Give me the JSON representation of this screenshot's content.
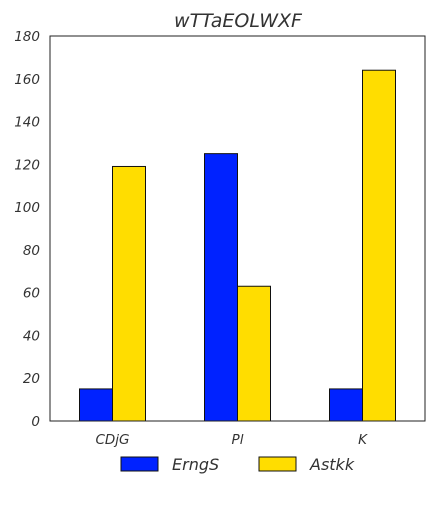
{
  "chart_data": {
    "type": "bar",
    "title": "wTTaEOLWXF",
    "xlabel": "",
    "ylabel": "",
    "categories": [
      "CDjG",
      "Pl",
      "K"
    ],
    "series": [
      {
        "name": "ErngS",
        "values": [
          15,
          125,
          15
        ],
        "color": "#0022ff"
      },
      {
        "name": "Astkk",
        "values": [
          119,
          63,
          164
        ],
        "color": "#ffdd00"
      }
    ],
    "ylim": [
      0,
      180
    ],
    "yticks": [
      0,
      20,
      40,
      60,
      80,
      100,
      120,
      140,
      160,
      180
    ],
    "grid": false,
    "legend_position": "bottom"
  }
}
